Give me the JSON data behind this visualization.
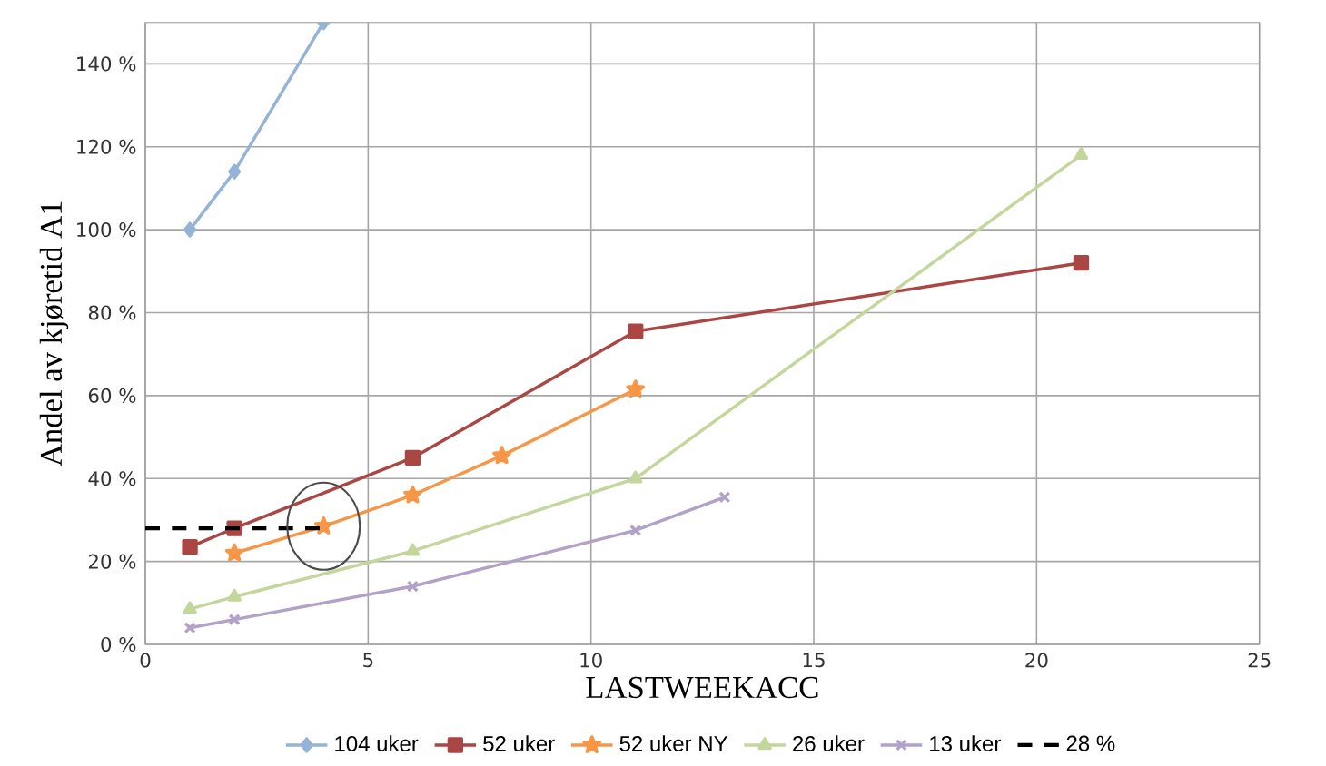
{
  "chart_data": {
    "type": "line",
    "xlabel": "LASTWEEKACC",
    "ylabel": "Andel av kjøretid A1",
    "xlim": [
      0,
      25
    ],
    "xticks": [
      0,
      5,
      10,
      15,
      20,
      25
    ],
    "ylim": [
      0,
      150
    ],
    "yticks": [
      {
        "value": 0,
        "label": "0 %"
      },
      {
        "value": 20,
        "label": "20 %"
      },
      {
        "value": 40,
        "label": "40 %"
      },
      {
        "value": 60,
        "label": "60 %"
      },
      {
        "value": 80,
        "label": "80 %"
      },
      {
        "value": 100,
        "label": "100 %"
      },
      {
        "value": 120,
        "label": "120 %"
      },
      {
        "value": 140,
        "label": "140 %"
      }
    ],
    "grid": true,
    "legend": "bottom",
    "series": [
      {
        "name": "104 uker",
        "color": "#95b3d7",
        "marker": "diamond",
        "x": [
          1,
          2,
          4
        ],
        "values": [
          100,
          114,
          150
        ]
      },
      {
        "name": "52 uker",
        "color": "#aa4643",
        "marker": "square",
        "x": [
          1,
          2,
          6,
          11,
          21
        ],
        "values": [
          23.5,
          28,
          45,
          75.5,
          92
        ]
      },
      {
        "name": "52 uker NY",
        "color": "#f79646",
        "marker": "star",
        "x": [
          2,
          4,
          6,
          8,
          11
        ],
        "values": [
          22,
          28.5,
          36,
          45.5,
          61.5
        ]
      },
      {
        "name": "26 uker",
        "color": "#c3d69b",
        "marker": "triangle",
        "x": [
          1,
          2,
          6,
          11,
          21
        ],
        "values": [
          8.5,
          11.5,
          22.5,
          40,
          118
        ]
      },
      {
        "name": "13 uker",
        "color": "#b3a2c7",
        "marker": "cross",
        "x": [
          1,
          2,
          6,
          11,
          13
        ],
        "values": [
          4,
          6,
          14,
          27.5,
          35.5
        ]
      },
      {
        "name": "28 %",
        "color": "#000000",
        "marker": "none",
        "line_style": "dashed",
        "x": [
          0,
          4
        ],
        "values": [
          28,
          28
        ]
      }
    ]
  }
}
